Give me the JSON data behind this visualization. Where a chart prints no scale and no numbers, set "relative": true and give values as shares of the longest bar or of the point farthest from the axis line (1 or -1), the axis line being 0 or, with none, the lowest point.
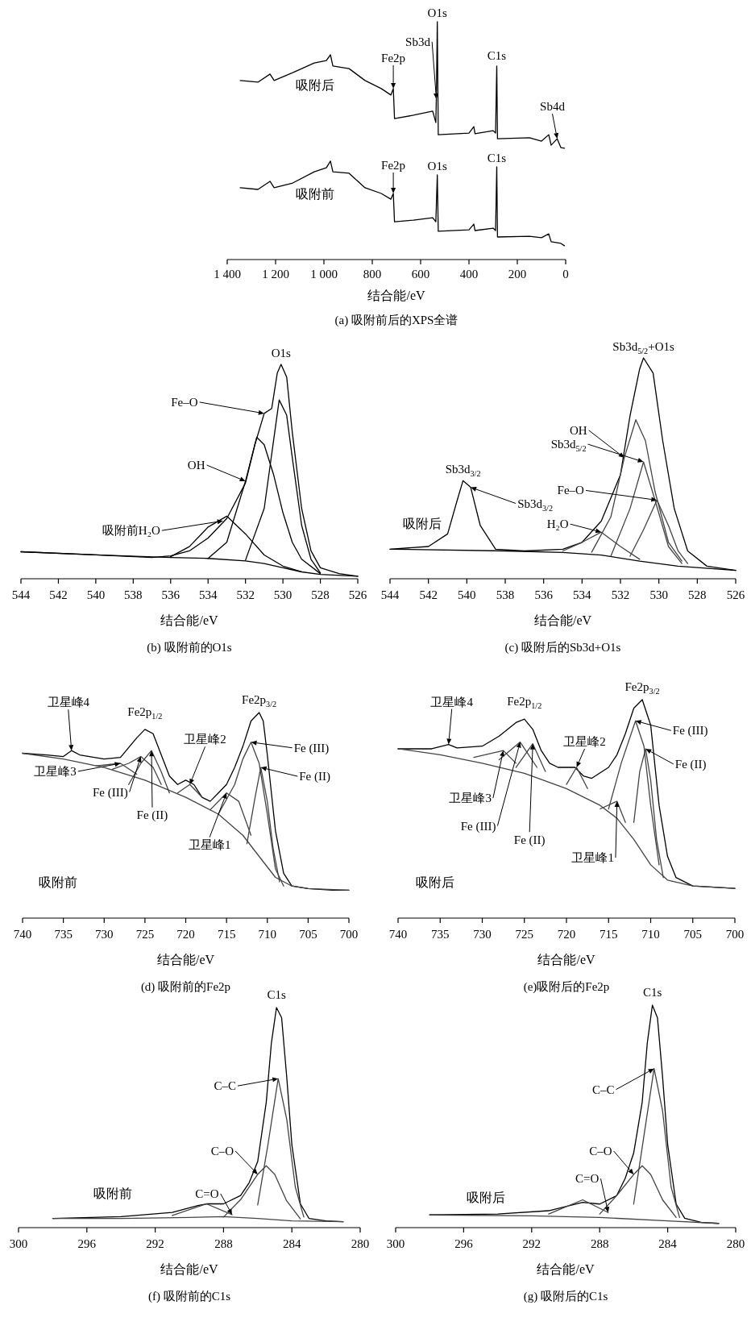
{
  "chart_data": [
    {
      "type": "line",
      "title": "(a) 吸附前后的XPS全谱",
      "xlabel": "结合能/eV",
      "relative": true,
      "xlim": [
        1400,
        0
      ],
      "xticks": [
        {
          "value": 1400,
          "label": "1 400"
        },
        {
          "value": 1200,
          "label": "1 200"
        },
        {
          "value": 1000,
          "label": "1 000"
        },
        800,
        600,
        400,
        200,
        0
      ],
      "series": [
        {
          "name": "吸附后",
          "color": "#000000",
          "x": [
            1346,
            1273,
            1223,
            1206,
            1129,
            1040,
            990,
            973,
            963,
            896,
            830,
            763,
            723,
            713,
            708,
            630,
            550,
            537,
            535,
            531,
            527,
            400,
            380,
            375,
            300,
            290,
            285,
            282,
            150,
            100,
            70,
            60,
            35,
            20,
            5
          ],
          "values": [
            0.753,
            0.746,
            0.78,
            0.753,
            0.786,
            0.827,
            0.837,
            0.861,
            0.814,
            0.803,
            0.753,
            0.719,
            0.692,
            0.719,
            0.593,
            0.607,
            0.624,
            0.576,
            0.675,
            1.0,
            0.525,
            0.532,
            0.559,
            0.529,
            0.542,
            0.532,
            0.814,
            0.508,
            0.512,
            0.498,
            0.525,
            0.481,
            0.508,
            0.471,
            0.468
          ]
        },
        {
          "name": "吸附前",
          "color": "#000000",
          "x": [
            1346,
            1273,
            1223,
            1206,
            1129,
            1040,
            990,
            973,
            963,
            896,
            830,
            763,
            723,
            713,
            708,
            630,
            550,
            537,
            531,
            527,
            400,
            380,
            375,
            300,
            290,
            285,
            282,
            150,
            100,
            70,
            60,
            20,
            5
          ],
          "values": [
            0.302,
            0.295,
            0.329,
            0.302,
            0.322,
            0.369,
            0.386,
            0.414,
            0.369,
            0.363,
            0.302,
            0.278,
            0.254,
            0.278,
            0.159,
            0.166,
            0.176,
            0.159,
            0.356,
            0.119,
            0.125,
            0.149,
            0.122,
            0.132,
            0.122,
            0.39,
            0.095,
            0.098,
            0.092,
            0.108,
            0.075,
            0.068,
            0.058
          ]
        }
      ],
      "annotations": [
        {
          "text": "Fe2p",
          "x": 713,
          "y": 0.719
        },
        {
          "text": "Sb3d",
          "x": 535,
          "y": 0.675
        },
        {
          "text": "O1s",
          "x": 531,
          "y": 1.0
        },
        {
          "text": "C1s",
          "x": 285,
          "y": 0.814
        },
        {
          "text": "Sb4d",
          "x": 35,
          "y": 0.508
        },
        {
          "text": "Fe2p",
          "x": 713,
          "y": 0.278
        },
        {
          "text": "O1s",
          "x": 531,
          "y": 0.356
        },
        {
          "text": "C1s",
          "x": 285,
          "y": 0.39
        }
      ]
    },
    {
      "type": "line",
      "title": "(b) 吸附前的O1s",
      "xlabel": "结合能/eV",
      "relative": true,
      "xlim": [
        544,
        526
      ],
      "xticks": [
        544,
        542,
        540,
        538,
        536,
        534,
        532,
        530,
        528,
        526
      ],
      "series": [
        {
          "color": "#000000",
          "x": [
            544,
            540,
            537,
            536,
            535,
            534,
            533,
            532,
            531.5,
            531,
            530.6,
            530.3,
            530.1,
            529.8,
            529.5,
            529,
            528.5,
            528,
            527,
            526
          ],
          "values": [
            0.126,
            0.111,
            0.099,
            0.107,
            0.13,
            0.19,
            0.281,
            0.447,
            0.625,
            0.771,
            0.794,
            0.96,
            1.0,
            0.941,
            0.684,
            0.328,
            0.13,
            0.051,
            0.024,
            0.012
          ]
        },
        {
          "color": "#000000",
          "x": [
            544,
            540,
            536,
            534,
            532,
            531,
            530,
            529,
            528,
            526
          ],
          "values": [
            0.126,
            0.111,
            0.099,
            0.095,
            0.083,
            0.071,
            0.051,
            0.032,
            0.02,
            0.012
          ]
        },
        {
          "color": "#000000",
          "x": [
            534,
            533,
            532,
            531.4,
            531,
            530.5,
            530,
            529.5,
            529,
            528
          ],
          "values": [
            0.095,
            0.17,
            0.455,
            0.66,
            0.625,
            0.486,
            0.308,
            0.17,
            0.091,
            0.024
          ]
        },
        {
          "color": "#000000",
          "x": [
            532,
            531,
            530.5,
            530.2,
            529.8,
            529.5,
            529,
            528.5,
            528
          ],
          "values": [
            0.087,
            0.328,
            0.644,
            0.834,
            0.763,
            0.565,
            0.249,
            0.091,
            0.028
          ]
        },
        {
          "color": "#000000",
          "x": [
            536,
            535,
            534,
            533,
            532,
            531,
            530,
            529
          ],
          "values": [
            0.103,
            0.15,
            0.241,
            0.292,
            0.209,
            0.111,
            0.059,
            0.032
          ]
        }
      ],
      "annotations": [
        {
          "text": "O1s",
          "x": 530.1,
          "y": 1.0
        },
        {
          "text": "Fe–O",
          "x": 531,
          "y": 0.771
        },
        {
          "text": "OH",
          "x": 532,
          "y": 0.455
        },
        {
          "text": "吸附前H₂O",
          "x": 533.2,
          "y": 0.27
        }
      ]
    },
    {
      "type": "line",
      "title": "(c) 吸附后的Sb3d+O1s",
      "xlabel": "结合能/eV",
      "relative": true,
      "xlim": [
        544,
        526
      ],
      "xticks": [
        544,
        542,
        540,
        538,
        536,
        534,
        532,
        530,
        528,
        526
      ],
      "series": [
        {
          "color": "#000000",
          "x": [
            544,
            542,
            541,
            540.5,
            540.2,
            539.8,
            539.3,
            538.5,
            537,
            535,
            534,
            533,
            532,
            531.5,
            531,
            530.8,
            530.3,
            529.8,
            529.2,
            528.5,
            527.5,
            526
          ],
          "values": [
            0.134,
            0.146,
            0.203,
            0.356,
            0.444,
            0.414,
            0.241,
            0.134,
            0.126,
            0.134,
            0.165,
            0.261,
            0.471,
            0.739,
            0.95,
            1.0,
            0.931,
            0.625,
            0.318,
            0.126,
            0.057,
            0.038
          ]
        },
        {
          "color": "#000000",
          "x": [
            544,
            538,
            535,
            533,
            531,
            529,
            526
          ],
          "values": [
            0.134,
            0.126,
            0.119,
            0.107,
            0.08,
            0.057,
            0.038
          ]
        },
        {
          "color": "#444444",
          "x": [
            533.5,
            532.5,
            531.8,
            531.2,
            530.7,
            530.2,
            529.5,
            528.8
          ],
          "values": [
            0.12,
            0.28,
            0.548,
            0.72,
            0.625,
            0.395,
            0.165,
            0.08
          ]
        },
        {
          "color": "#444444",
          "x": [
            532.5,
            531.5,
            530.8,
            530.2,
            529.5,
            528.8
          ],
          "values": [
            0.102,
            0.318,
            0.529,
            0.356,
            0.146,
            0.069
          ]
        },
        {
          "color": "#444444",
          "x": [
            531.5,
            530.8,
            530.1,
            529.5,
            529,
            528.5
          ],
          "values": [
            0.102,
            0.222,
            0.356,
            0.241,
            0.126,
            0.069
          ]
        },
        {
          "color": "#444444",
          "x": [
            535,
            534,
            533,
            532,
            531
          ],
          "values": [
            0.126,
            0.165,
            0.211,
            0.146,
            0.088
          ]
        }
      ],
      "annotations": [
        {
          "text": "Sb3d$_{3/2}$",
          "x": 540.2,
          "y": 0.444
        },
        {
          "text": "Sb3d$_{3/2}$",
          "x": 539.8,
          "y": 0.414
        },
        {
          "text": "Sb3d$_{5/2}$+O1s",
          "x": 530.8,
          "y": 1.0
        },
        {
          "text": "OH",
          "x": 531.8,
          "y": 0.548
        },
        {
          "text": "Sb3d$_{5/2}$",
          "x": 530.8,
          "y": 0.529
        },
        {
          "text": "Fe–O",
          "x": 530.1,
          "y": 0.356
        },
        {
          "text": "H₂O",
          "x": 533,
          "y": 0.211
        },
        "吸附后"
      ]
    },
    {
      "type": "line",
      "title": "(d) 吸附前的Fe2p",
      "xlabel": "结合能/eV",
      "relative": true,
      "xlim": [
        740,
        700
      ],
      "xticks": [
        740,
        735,
        730,
        725,
        720,
        715,
        710,
        705,
        700
      ],
      "series": [
        {
          "color": "#000000",
          "x": [
            740,
            737,
            735,
            734,
            733,
            730,
            728,
            726,
            725,
            724,
            723,
            722,
            721,
            720,
            719,
            718,
            717,
            716,
            715,
            714,
            713,
            712,
            711,
            710.5,
            710,
            709,
            708,
            707,
            705,
            702,
            700
          ],
          "values": [
            0.802,
            0.794,
            0.786,
            0.815,
            0.794,
            0.774,
            0.782,
            0.877,
            0.918,
            0.897,
            0.794,
            0.691,
            0.65,
            0.671,
            0.65,
            0.588,
            0.568,
            0.609,
            0.65,
            0.733,
            0.835,
            0.959,
            1.0,
            0.959,
            0.794,
            0.424,
            0.218,
            0.156,
            0.144,
            0.136,
            0.136
          ]
        },
        {
          "color": "#444444",
          "x": [
            740,
            735,
            730,
            725,
            720,
            716,
            713,
            711,
            709,
            707,
            705,
            700
          ],
          "values": [
            0.802,
            0.774,
            0.733,
            0.671,
            0.588,
            0.506,
            0.403,
            0.3,
            0.198,
            0.156,
            0.144,
            0.136
          ]
        },
        {
          "color": "#444444",
          "x": [
            716,
            714,
            713,
            712,
            711,
            710,
            709,
            708
          ],
          "values": [
            0.506,
            0.65,
            0.774,
            0.856,
            0.753,
            0.506,
            0.239,
            0.156
          ]
        },
        {
          "color": "#444444",
          "x": [
            712.5,
            711.5,
            710.8,
            710,
            709.3,
            708.5
          ],
          "values": [
            0.362,
            0.588,
            0.733,
            0.568,
            0.342,
            0.177
          ]
        },
        {
          "color": "#444444",
          "x": [
            727,
            725.5,
            724.2,
            723,
            722
          ],
          "values": [
            0.65,
            0.753,
            0.815,
            0.712,
            0.609
          ]
        },
        {
          "color": "#444444",
          "x": [
            729,
            727,
            725.5,
            724,
            723
          ],
          "values": [
            0.724,
            0.753,
            0.786,
            0.733,
            0.65
          ]
        },
        {
          "color": "#444444",
          "x": [
            731,
            728,
            726
          ],
          "values": [
            0.741,
            0.753,
            0.7
          ]
        },
        {
          "color": "#444444",
          "x": [
            721,
            719.5,
            718
          ],
          "values": [
            0.609,
            0.65,
            0.588
          ]
        },
        {
          "color": "#444444",
          "x": [
            717,
            715,
            713.5,
            712
          ],
          "values": [
            0.527,
            0.609,
            0.568,
            0.403
          ]
        }
      ],
      "annotations": [
        {
          "text": "卫星峰4",
          "x": 734,
          "y": 0.815
        },
        {
          "text": "Fe2p$_{1/2}$",
          "x": 725,
          "y": 0.918
        },
        {
          "text": "卫星峰2",
          "x": 719.5,
          "y": 0.65
        },
        {
          "text": "Fe2p$_{3/2}$",
          "x": 711,
          "y": 1.0
        },
        {
          "text": "Fe (III)",
          "x": 712,
          "y": 0.856
        },
        {
          "text": "Fe (II)",
          "x": 710.8,
          "y": 0.733
        },
        {
          "text": "卫星峰3",
          "x": 728,
          "y": 0.753
        },
        {
          "text": "Fe (III)",
          "x": 725.5,
          "y": 0.786
        },
        {
          "text": "Fe (II)",
          "x": 724.2,
          "y": 0.815
        },
        {
          "text": "卫星峰1",
          "x": 715,
          "y": 0.609
        },
        "吸附前"
      ]
    },
    {
      "type": "line",
      "title": "(e)吸附后的Fe2p",
      "xlabel": "结合能/eV",
      "relative": true,
      "xlim": [
        740,
        700
      ],
      "xticks": [
        740,
        735,
        730,
        725,
        720,
        715,
        710,
        705,
        700
      ],
      "series": [
        {
          "color": "#000000",
          "x": [
            740,
            736,
            734,
            733,
            730,
            728,
            726,
            725,
            724,
            723,
            722,
            721,
            719,
            718,
            717,
            715,
            714,
            713,
            712,
            711,
            710,
            709,
            708,
            707,
            705,
            700
          ],
          "values": [
            0.775,
            0.775,
            0.795,
            0.779,
            0.787,
            0.833,
            0.895,
            0.911,
            0.864,
            0.767,
            0.709,
            0.69,
            0.69,
            0.651,
            0.64,
            0.69,
            0.748,
            0.845,
            0.961,
            1.0,
            0.884,
            0.516,
            0.283,
            0.186,
            0.147,
            0.136
          ]
        },
        {
          "color": "#444444",
          "x": [
            740,
            735,
            730,
            725,
            720,
            716,
            714,
            712,
            710,
            708,
            705,
            700
          ],
          "values": [
            0.775,
            0.748,
            0.709,
            0.663,
            0.593,
            0.516,
            0.457,
            0.36,
            0.244,
            0.174,
            0.147,
            0.136
          ]
        },
        {
          "color": "#444444",
          "x": [
            715,
            713.5,
            711.8,
            710.8,
            710,
            709
          ],
          "values": [
            0.5,
            0.709,
            0.903,
            0.787,
            0.516,
            0.244
          ]
        },
        {
          "color": "#444444",
          "x": [
            712,
            711.3,
            710.6,
            710,
            709.3,
            708.5
          ],
          "values": [
            0.438,
            0.671,
            0.775,
            0.632,
            0.36,
            0.186
          ]
        },
        {
          "color": "#444444",
          "x": [
            716,
            714,
            713
          ],
          "values": [
            0.5,
            0.535,
            0.438
          ]
        },
        {
          "color": "#444444",
          "x": [
            720,
            718.8,
            717.5
          ],
          "values": [
            0.612,
            0.69,
            0.593
          ]
        },
        {
          "color": "#444444",
          "x": [
            726,
            724,
            722.5
          ],
          "values": [
            0.69,
            0.798,
            0.671
          ]
        },
        {
          "color": "#444444",
          "x": [
            728,
            725.5,
            723.5
          ],
          "values": [
            0.725,
            0.806,
            0.69
          ]
        },
        {
          "color": "#444444",
          "x": [
            731,
            727.5,
            726
          ],
          "values": [
            0.736,
            0.767,
            0.709
          ]
        }
      ],
      "annotations": [
        {
          "text": "卫星峰4",
          "x": 734,
          "y": 0.795
        },
        {
          "text": "Fe2p$_{1/2}$",
          "x": 725,
          "y": 0.911
        },
        {
          "text": "卫星峰2",
          "x": 718.8,
          "y": 0.69
        },
        {
          "text": "Fe2p$_{3/2}$",
          "x": 711,
          "y": 1.0
        },
        {
          "text": "Fe (III)",
          "x": 711.8,
          "y": 0.903
        },
        {
          "text": "Fe (II)",
          "x": 710.6,
          "y": 0.775
        },
        {
          "text": "卫星峰3",
          "x": 727.5,
          "y": 0.767
        },
        {
          "text": "Fe (III)",
          "x": 725.5,
          "y": 0.806
        },
        {
          "text": "Fe (II)",
          "x": 724,
          "y": 0.798
        },
        {
          "text": "卫星峰1",
          "x": 714,
          "y": 0.535
        },
        "吸附后"
      ]
    },
    {
      "type": "line",
      "title": "(f) 吸附前的C1s",
      "xlabel": "结合能/eV",
      "relative": true,
      "xlim": [
        300,
        280
      ],
      "xticks": [
        300,
        296,
        292,
        288,
        284,
        280
      ],
      "series": [
        {
          "color": "#000000",
          "x": [
            298,
            294,
            291,
            289.5,
            289,
            288,
            287,
            286.5,
            286,
            285.5,
            285.2,
            284.9,
            284.6,
            284.3,
            284,
            283.5,
            283,
            282,
            281
          ],
          "values": [
            0.042,
            0.05,
            0.069,
            0.1,
            0.108,
            0.108,
            0.146,
            0.204,
            0.3,
            0.569,
            0.838,
            1.0,
            0.954,
            0.685,
            0.377,
            0.108,
            0.042,
            0.031,
            0.027
          ]
        },
        {
          "color": "#444444",
          "x": [
            298,
            294,
            290,
            288,
            286,
            284,
            281
          ],
          "values": [
            0.042,
            0.042,
            0.046,
            0.05,
            0.042,
            0.031,
            0.027
          ]
        },
        {
          "color": "#444444",
          "x": [
            286,
            285.4,
            284.8,
            284.3,
            283.8,
            283.3
          ],
          "values": [
            0.103,
            0.377,
            0.677,
            0.492,
            0.185,
            0.048
          ]
        },
        {
          "color": "#444444",
          "x": [
            288,
            287,
            286,
            285.5,
            285,
            284.3,
            283.5
          ],
          "values": [
            0.048,
            0.127,
            0.242,
            0.281,
            0.242,
            0.121,
            0.04
          ]
        },
        {
          "color": "#444444",
          "x": [
            291,
            289,
            287.5
          ],
          "values": [
            0.055,
            0.108,
            0.059
          ]
        }
      ],
      "annotations": [
        {
          "text": "C1s",
          "x": 284.9,
          "y": 1.0
        },
        {
          "text": "C–C",
          "x": 284.8,
          "y": 0.677
        },
        {
          "text": "C–O",
          "x": 286,
          "y": 0.242
        },
        {
          "text": "C=O",
          "x": 287.5,
          "y": 0.059
        },
        "吸附前"
      ]
    },
    {
      "type": "line",
      "title": "(g) 吸附后的C1s",
      "xlabel": "结合能/eV",
      "relative": true,
      "xlim": [
        300,
        280
      ],
      "xticks": [
        300,
        296,
        292,
        288,
        284,
        280
      ],
      "series": [
        {
          "color": "#000000",
          "x": [
            298,
            294,
            291,
            289,
            288,
            287,
            286.5,
            286,
            285.5,
            285.2,
            284.9,
            284.6,
            284.3,
            284,
            283.5,
            283,
            282,
            281
          ],
          "values": [
            0.057,
            0.061,
            0.076,
            0.114,
            0.106,
            0.144,
            0.221,
            0.335,
            0.563,
            0.829,
            1.0,
            0.943,
            0.677,
            0.373,
            0.106,
            0.042,
            0.023,
            0.019
          ]
        },
        {
          "color": "#444444",
          "x": [
            298,
            292,
            288,
            284,
            281
          ],
          "values": [
            0.057,
            0.053,
            0.046,
            0.03,
            0.019
          ]
        },
        {
          "color": "#444444",
          "x": [
            286,
            285.4,
            284.8,
            284.3,
            283.8,
            283.3
          ],
          "values": [
            0.106,
            0.411,
            0.715,
            0.525,
            0.183,
            0.046
          ]
        },
        {
          "color": "#444444",
          "x": [
            288,
            287,
            286,
            285.5,
            285,
            284.3,
            283.5
          ],
          "values": [
            0.061,
            0.144,
            0.239,
            0.278,
            0.239,
            0.125,
            0.046
          ]
        },
        {
          "color": "#444444",
          "x": [
            291,
            289,
            287.5
          ],
          "values": [
            0.061,
            0.125,
            0.068
          ]
        }
      ],
      "annotations": [
        {
          "text": "C1s",
          "x": 284.9,
          "y": 1.0
        },
        {
          "text": "C–C",
          "x": 284.8,
          "y": 0.715
        },
        {
          "text": "C–O",
          "x": 286,
          "y": 0.239
        },
        {
          "text": "C=O",
          "x": 287.5,
          "y": 0.068
        },
        "吸附后"
      ]
    }
  ]
}
